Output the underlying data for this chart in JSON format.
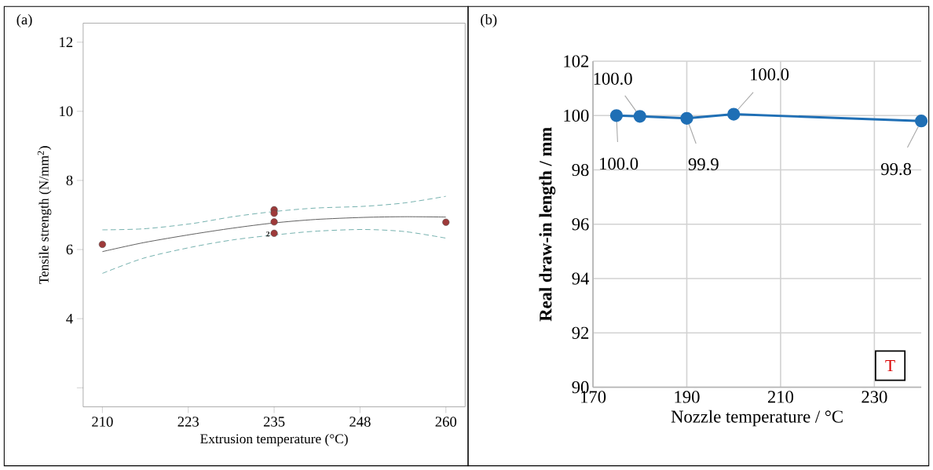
{
  "chart_data": [
    {
      "type": "scatter",
      "title": "(a)",
      "xlabel": "Extrusion temperature (°C)",
      "ylabel": "Tensile strength (N/mm$^{2}$)",
      "xlim": [
        207.2,
        262.8
      ],
      "ylim": [
        1.45,
        12.55
      ],
      "xticks": [
        210,
        {
          "value": 222.5,
          "label": "223"
        },
        235,
        {
          "value": 247.5,
          "label": "248"
        },
        260
      ],
      "yticks": [
        {
          "value": 2,
          "label": null
        },
        4,
        6,
        8,
        10,
        12
      ],
      "annotations": [
        {
          "text": "2",
          "x": 235,
          "y": 6.45
        }
      ],
      "series": [
        {
          "type": "scatter",
          "marker": "circle",
          "color": "#9e3a3a",
          "x": [
            210,
            235,
            235,
            235,
            235,
            260
          ],
          "values": [
            6.15,
            7.15,
            7.05,
            6.8,
            6.47,
            6.79
          ]
        },
        {
          "type": "line",
          "marker": "none",
          "line_style": "solid",
          "color": "#555555",
          "x": [
            210,
            216,
            223,
            229,
            235,
            241,
            248,
            254,
            260
          ],
          "values": [
            5.94,
            6.2,
            6.44,
            6.62,
            6.77,
            6.87,
            6.93,
            6.95,
            6.94
          ]
        },
        {
          "type": "line",
          "marker": "none",
          "line_style": "dashed",
          "color": "#6aaba8",
          "x": [
            210,
            216,
            223,
            229,
            235,
            241,
            248,
            254,
            260
          ],
          "values": [
            6.57,
            6.6,
            6.75,
            6.95,
            7.1,
            7.2,
            7.25,
            7.35,
            7.54
          ]
        },
        {
          "type": "line",
          "marker": "none",
          "line_style": "dashed",
          "color": "#6aaba8",
          "x": [
            210,
            216,
            223,
            229,
            235,
            241,
            248,
            254,
            260
          ],
          "values": [
            5.31,
            5.75,
            6.07,
            6.28,
            6.42,
            6.53,
            6.58,
            6.52,
            6.33
          ]
        }
      ]
    },
    {
      "type": "line",
      "title": "(b)",
      "xlabel": "Nozzle temperature / °C",
      "ylabel": "Real draw-in length / mm",
      "xlim": [
        170,
        240
      ],
      "ylim": [
        90,
        102
      ],
      "xticks": [
        170,
        190,
        210,
        230
      ],
      "yticks": [
        90,
        92,
        94,
        96,
        98,
        100,
        102
      ],
      "grid": true,
      "marker": "circle",
      "annotations": [
        "T"
      ],
      "series": [
        {
          "color": "#1f6fb5",
          "x": [
            175,
            180,
            190,
            200,
            240
          ],
          "values": [
            100.0,
            99.97,
            99.9,
            100.05,
            99.8
          ],
          "value_labels": [
            "100.0",
            "100.0",
            "99.9",
            "100.0",
            "99.8"
          ]
        }
      ]
    }
  ]
}
